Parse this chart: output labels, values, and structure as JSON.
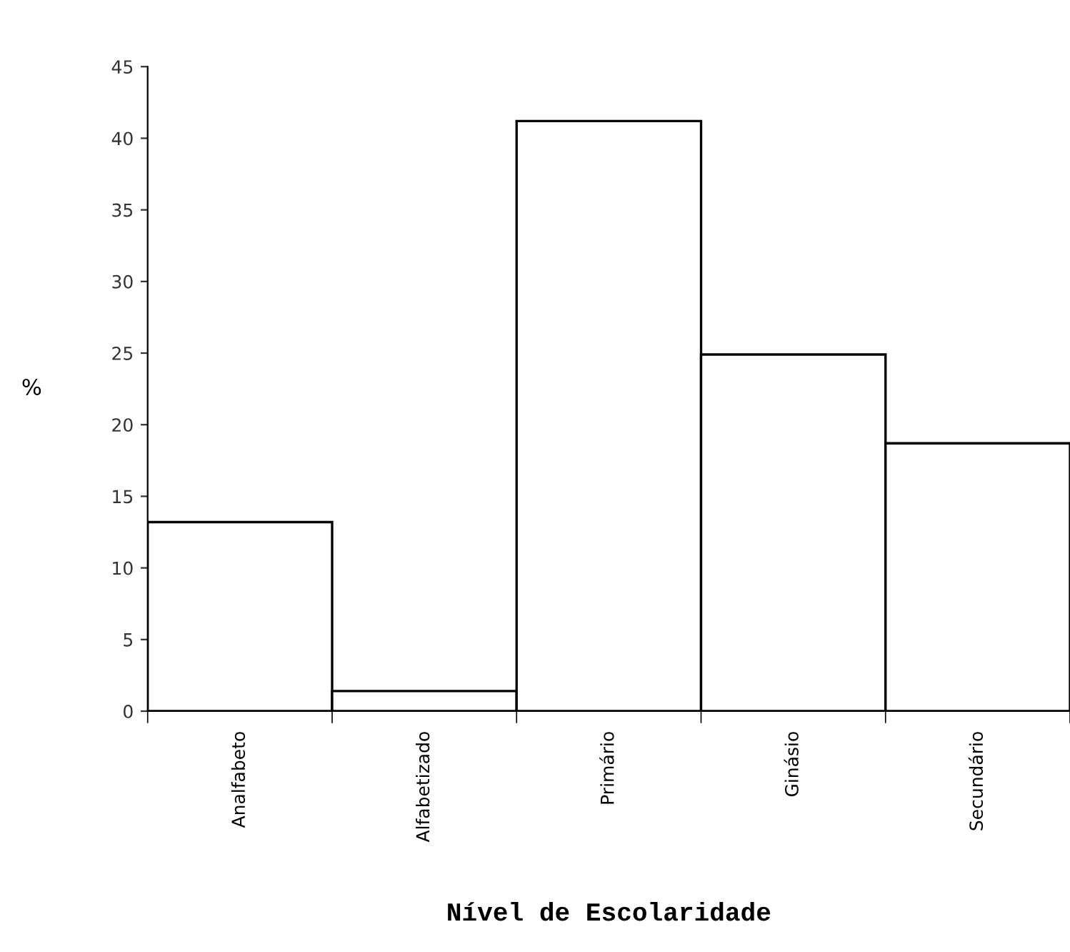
{
  "chart_data": {
    "type": "bar",
    "xlabel": "Nível de Escolaridade",
    "ylabel": "%",
    "categories": [
      "Analfabeto",
      "Alfabetizado",
      "Primário",
      "Ginásio",
      "Secundário"
    ],
    "values": [
      13.2,
      1.4,
      41.2,
      24.9,
      18.7
    ],
    "color": "#ffffff",
    "ylim": [
      0,
      45
    ],
    "yticks": [
      0,
      5,
      10,
      15,
      20,
      25,
      30,
      35,
      40,
      45
    ],
    "grid": false
  }
}
